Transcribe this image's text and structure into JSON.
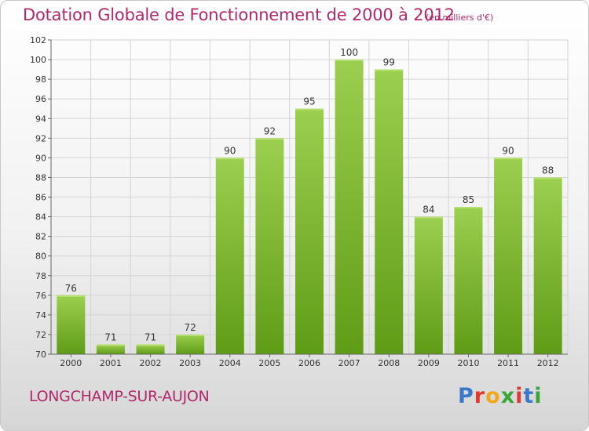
{
  "title": "Dotation Globale de Fonctionnement de 2000 à 2012",
  "subtitle": "(en milliers d'€)",
  "commune": "LONGCHAMP-SUR-AUJON",
  "logo": "Proxiti",
  "logo_colors": [
    "#3a78c8",
    "#e0392e",
    "#f3a81c",
    "#3aa63a",
    "#e0392e",
    "#3a78c8",
    "#3aa63a"
  ],
  "colors": {
    "title": "#b0286a",
    "bar_top": "#9ccf4f",
    "bar_bottom": "#5f9c16",
    "grid": "#d4d4d4"
  },
  "chart_data": {
    "type": "bar",
    "title": "Dotation Globale de Fonctionnement de 2000 à 2012",
    "subtitle": "(en milliers d'€)",
    "categories": [
      "2000",
      "2001",
      "2002",
      "2003",
      "2004",
      "2005",
      "2006",
      "2007",
      "2008",
      "2009",
      "2010",
      "2011",
      "2012"
    ],
    "values": [
      76,
      71,
      71,
      72,
      90,
      92,
      95,
      100,
      99,
      84,
      85,
      90,
      88
    ],
    "ylim": [
      70,
      102
    ],
    "yticks": [
      70,
      72,
      74,
      76,
      78,
      80,
      82,
      84,
      86,
      88,
      90,
      92,
      94,
      96,
      98,
      100,
      102
    ],
    "grid": true,
    "data_labels": true
  }
}
